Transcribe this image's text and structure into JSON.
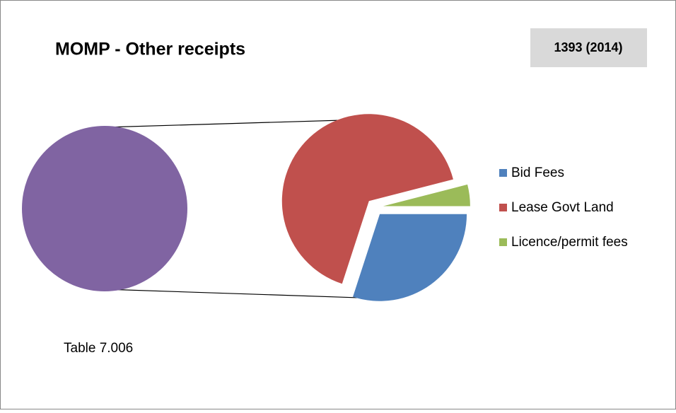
{
  "chart_data": {
    "type": "pie-of-pie",
    "title": "MOMP - Other receipts",
    "subtitle": "1393 (2014)",
    "annotation": "Table 7.006",
    "categories": [
      "Bid Fees",
      "Lease Govt Land",
      "Licence/permit fees"
    ],
    "values": [
      30,
      66,
      4
    ],
    "colors": [
      "#4f81bd",
      "#c0504d",
      "#9bbb59"
    ],
    "group_color": "#8064a2",
    "legend": "right"
  }
}
